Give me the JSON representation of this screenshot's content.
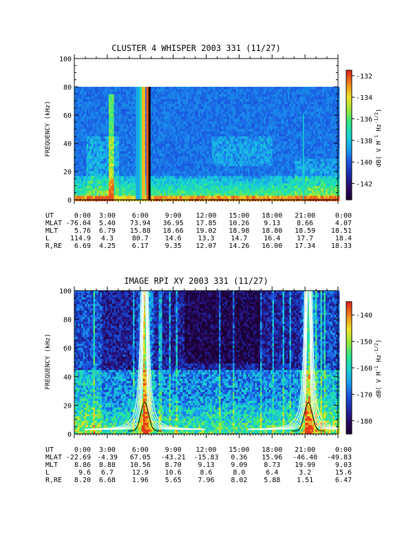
{
  "panels": [
    {
      "title": "CLUSTER 4 WHISPER 2003 331 (11/27)",
      "ylabel": "FREQUENCY (kHz)",
      "colorbar_label": "dB( V M^-1 Hz^-1/2)",
      "colorbar_ticks": [
        "-132",
        "-134",
        "-136",
        "-138",
        "-140",
        "-142"
      ],
      "colorbar_range": [
        -143.5,
        -131.5
      ],
      "ephemeris": [
        {
          "label": "UT",
          "values": [
            "0:00",
            "3:00",
            "6:00",
            "9:00",
            "12:00",
            "15:00",
            "18:00",
            "21:00",
            "0:00"
          ]
        },
        {
          "label": "MLAT",
          "values": [
            "-76.04",
            "5.40",
            "73.94",
            "36.95",
            "17.85",
            "10.26",
            "9.13",
            "8.66",
            "4.07"
          ]
        },
        {
          "label": "MLT",
          "values": [
            "5.76",
            "6.79",
            "15.88",
            "18.66",
            "19.02",
            "18.98",
            "18.80",
            "18.59",
            "18.51"
          ]
        },
        {
          "label": "L",
          "values": [
            "114.9",
            "4.3",
            "80.7",
            "14.6",
            "13.3",
            "14.7",
            "16.4",
            "17.7",
            "18.4"
          ]
        },
        {
          "label": "R,RE",
          "values": [
            "6.69",
            "4.25",
            "6.17",
            "9.35",
            "12.07",
            "14.26",
            "16.00",
            "17.34",
            "18.33"
          ]
        }
      ]
    },
    {
      "title": "IMAGE RPI XY 2003 331 (11/27)",
      "ylabel": "FREQUENCY (kHz)",
      "colorbar_label": "dB( V M^-1 Hz^-1/2)",
      "colorbar_ticks": [
        "-140",
        "-150",
        "-160",
        "-170",
        "-180"
      ],
      "colorbar_range": [
        -185,
        -135
      ],
      "ephemeris": [
        {
          "label": "UT",
          "values": [
            "0:00",
            "3:00",
            "6:00",
            "9:00",
            "12:00",
            "15:00",
            "18:00",
            "21:00",
            "0:00"
          ]
        },
        {
          "label": "MLAT",
          "values": [
            "-22.69",
            "-4.39",
            "67.05",
            "-43.21",
            "-15.83",
            "0.36",
            "15.96",
            "-46.40",
            "-49.83"
          ]
        },
        {
          "label": "MLT",
          "values": [
            "8.86",
            "8.88",
            "10.56",
            "8.70",
            "9.13",
            "9.09",
            "8.73",
            "19.99",
            "9.03"
          ]
        },
        {
          "label": "L",
          "values": [
            "9.6",
            "6.7",
            "12.9",
            "10.6",
            "8.6",
            "8.0",
            "6.4",
            "3.2",
            "15.6"
          ]
        },
        {
          "label": "R,RE",
          "values": [
            "8.20",
            "6.68",
            "1.96",
            "5.65",
            "7.96",
            "8.02",
            "5.88",
            "1.51",
            "6.47"
          ]
        }
      ]
    }
  ],
  "chart_data": [
    {
      "type": "heatmap",
      "title": "CLUSTER 4 WHISPER 2003 331 (11/27)",
      "ylabel": "FREQUENCY (kHz)",
      "xlim_hours_ut": [
        0,
        24
      ],
      "ylim": [
        0,
        100
      ],
      "y_ticks": [
        0,
        20,
        40,
        60,
        80,
        100
      ],
      "x_tick_labels": [
        "0:00",
        "3:00",
        "6:00",
        "9:00",
        "12:00",
        "15:00",
        "18:00",
        "21:00",
        "0:00"
      ],
      "data_frequency_max_khz": 80,
      "colorbar_ticks": [
        -132,
        -134,
        -136,
        -138,
        -140,
        -142
      ]
    },
    {
      "type": "heatmap",
      "title": "IMAGE RPI XY 2003 331 (11/27)",
      "ylabel": "FREQUENCY (kHz)",
      "xlim_hours_ut": [
        0,
        24
      ],
      "ylim": [
        0,
        100
      ],
      "y_ticks": [
        0,
        20,
        40,
        60,
        80,
        100
      ],
      "x_tick_labels": [
        "0:00",
        "3:00",
        "6:00",
        "9:00",
        "12:00",
        "15:00",
        "18:00",
        "21:00",
        "0:00"
      ],
      "colorbar_ticks": [
        -140,
        -150,
        -160,
        -170,
        -180
      ]
    }
  ],
  "colors": {
    "colormap": [
      "#1a0033",
      "#2a0a66",
      "#1b2aa8",
      "#1a55e0",
      "#1aa0ef",
      "#18d6d0",
      "#2ee88a",
      "#9be83a",
      "#f2e526",
      "#f28a1c",
      "#e5261a"
    ],
    "overlay_white": "#ffffff",
    "overlay_black": "#000000"
  }
}
